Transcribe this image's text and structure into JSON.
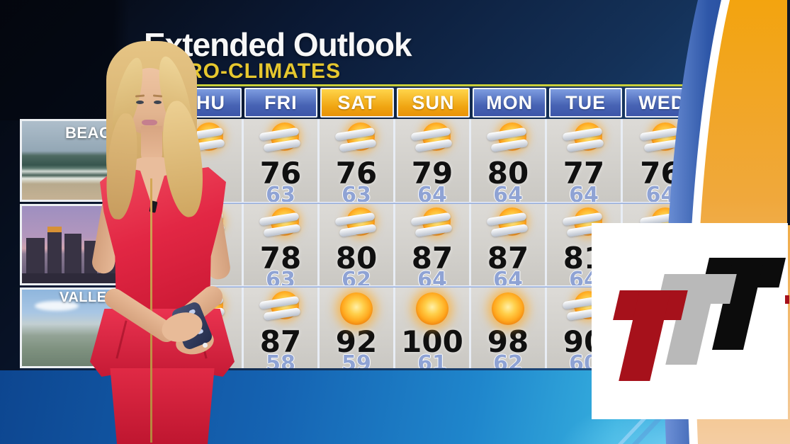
{
  "broadcast": {
    "title": "Extended Outlook",
    "subtitle": "MICRO-CLIMATES"
  },
  "forecast": {
    "days": [
      {
        "label": "THU",
        "weekend": false
      },
      {
        "label": "FRI",
        "weekend": false
      },
      {
        "label": "SAT",
        "weekend": true
      },
      {
        "label": "SUN",
        "weekend": true
      },
      {
        "label": "MON",
        "weekend": false
      },
      {
        "label": "TUE",
        "weekend": false
      },
      {
        "label": "WED",
        "weekend": false
      }
    ],
    "regions": [
      {
        "label": "BEACHES",
        "photo": "beach",
        "cells": [
          {
            "icon": "partly-cloudy",
            "hi": "",
            "lo": ""
          },
          {
            "icon": "partly-cloudy",
            "hi": "76",
            "lo": "63"
          },
          {
            "icon": "partly-cloudy",
            "hi": "76",
            "lo": "63"
          },
          {
            "icon": "partly-cloudy",
            "hi": "79",
            "lo": "64"
          },
          {
            "icon": "partly-cloudy",
            "hi": "80",
            "lo": "64"
          },
          {
            "icon": "partly-cloudy",
            "hi": "77",
            "lo": "64"
          },
          {
            "icon": "partly-cloudy",
            "hi": "76",
            "lo": "64"
          }
        ]
      },
      {
        "label": "",
        "photo": "city",
        "cells": [
          {
            "icon": "partly-cloudy",
            "hi": "",
            "lo": ""
          },
          {
            "icon": "partly-cloudy",
            "hi": "78",
            "lo": "63"
          },
          {
            "icon": "partly-cloudy",
            "hi": "80",
            "lo": "62"
          },
          {
            "icon": "partly-cloudy",
            "hi": "87",
            "lo": "64"
          },
          {
            "icon": "partly-cloudy",
            "hi": "87",
            "lo": "64"
          },
          {
            "icon": "partly-cloudy",
            "hi": "81",
            "lo": "64"
          },
          {
            "icon": "partly-cloudy",
            "hi": "",
            "lo": ""
          }
        ]
      },
      {
        "label": "VALLEYS",
        "photo": "valley",
        "cells": [
          {
            "icon": "partly-cloudy",
            "hi": "",
            "lo": ""
          },
          {
            "icon": "partly-cloudy",
            "hi": "87",
            "lo": "58"
          },
          {
            "icon": "sunny",
            "hi": "92",
            "lo": "59"
          },
          {
            "icon": "sunny",
            "hi": "100",
            "lo": "61"
          },
          {
            "icon": "sunny",
            "hi": "98",
            "lo": "62"
          },
          {
            "icon": "partly-cloudy",
            "hi": "90",
            "lo": "60"
          },
          {
            "icon": "partly-cloudy",
            "hi": "",
            "lo": ""
          }
        ]
      }
    ]
  },
  "logo": {
    "letters": [
      {
        "glyph": "T",
        "color": "#a6111b"
      },
      {
        "glyph": "T",
        "color": "#b9b9b9"
      },
      {
        "glyph": "T",
        "color": "#0c0c0c"
      }
    ]
  },
  "colors": {
    "background_navy": "#143158",
    "header_blue": "#4763b4",
    "header_gold": "#f0a512",
    "cell_gray": "#d3d1cc",
    "hi_temp": "#101010",
    "lo_temp": "#8fa3d4",
    "subtitle_yellow": "#e6c72e",
    "band_blue": "#1f86cc",
    "swoosh_gold": "#f5a816",
    "dress_red": "#e22744"
  }
}
